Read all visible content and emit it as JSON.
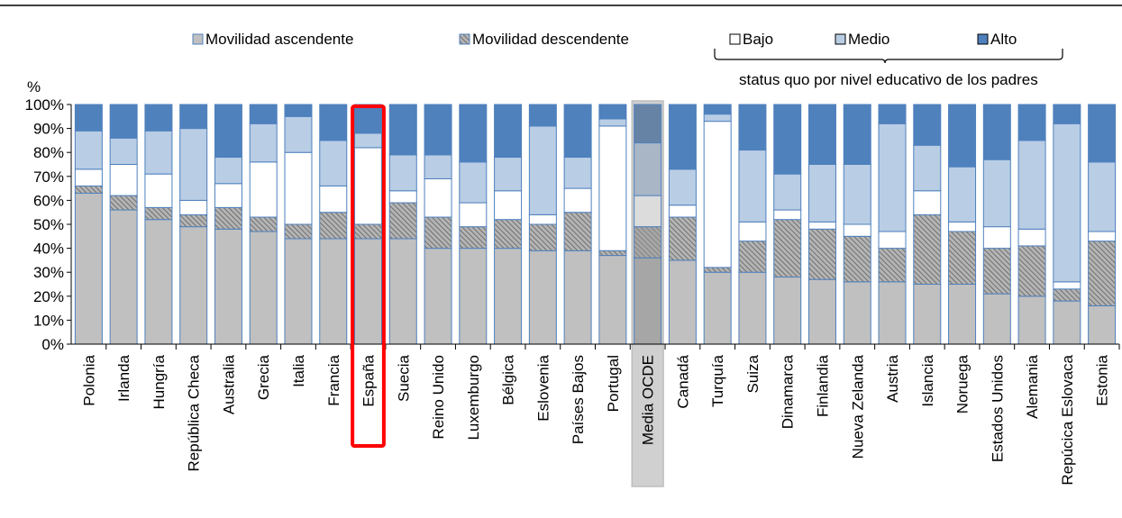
{
  "chart_data": {
    "type": "bar",
    "stacked": true,
    "ylim": [
      0,
      100
    ],
    "y_unit_label": "%",
    "yticks": [
      "0%",
      "10%",
      "20%",
      "30%",
      "40%",
      "50%",
      "60%",
      "70%",
      "80%",
      "90%",
      "100%"
    ],
    "legend": {
      "ascendente": "Movilidad ascendente",
      "descendente": "Movilidad descendente",
      "bajo": "Bajo",
      "medio": "Medio",
      "alto": "Alto",
      "bracket_caption": "status quo por nivel educativo de los padres",
      "placement": "top"
    },
    "categories": [
      "Polonia",
      "Irlanda",
      "Hungría",
      "República Checa",
      "Australia",
      "Grecia",
      "Italia",
      "Francia",
      "España",
      "Suecia",
      "Reino Unido",
      "Luxemburgo",
      "Bélgica",
      "Eslovenia",
      "Países Bajos",
      "Portugal",
      "Media OCDE",
      "Canadá",
      "Turquía",
      "Suiza",
      "Dinamarca",
      "Finlandia",
      "Nueva Zelanda",
      "Austria",
      "Islancia",
      "Noruega",
      "Estados Unidos",
      "Alemania",
      "Repúcica Eslovaca",
      "Estonia"
    ],
    "series": [
      {
        "name": "Movilidad ascendente",
        "values": [
          63,
          56,
          52,
          49,
          48,
          47,
          44,
          44,
          44,
          44,
          40,
          40,
          40,
          39,
          39,
          37,
          36,
          35,
          30,
          30,
          28,
          27,
          26,
          26,
          25,
          25,
          21,
          20,
          18,
          16
        ]
      },
      {
        "name": "Movilidad descendente",
        "values": [
          3,
          6,
          5,
          5,
          9,
          6,
          6,
          11,
          6,
          15,
          13,
          9,
          12,
          11,
          16,
          2,
          13,
          18,
          2,
          13,
          24,
          21,
          19,
          14,
          29,
          22,
          19,
          21,
          5,
          27
        ]
      },
      {
        "name": "Bajo",
        "values": [
          7,
          13,
          14,
          6,
          10,
          23,
          30,
          11,
          32,
          5,
          16,
          10,
          12,
          4,
          10,
          52,
          13,
          5,
          61,
          8,
          4,
          3,
          5,
          7,
          10,
          4,
          9,
          7,
          3,
          4
        ]
      },
      {
        "name": "Medio",
        "values": [
          16,
          11,
          18,
          30,
          11,
          16,
          15,
          19,
          6,
          15,
          10,
          17,
          14,
          37,
          13,
          3,
          22,
          15,
          3,
          30,
          15,
          24,
          25,
          45,
          19,
          23,
          28,
          37,
          66,
          29
        ]
      },
      {
        "name": "Alto",
        "values": [
          11,
          14,
          11,
          10,
          22,
          8,
          5,
          15,
          12,
          21,
          21,
          24,
          22,
          9,
          22,
          6,
          16,
          27,
          4,
          19,
          29,
          25,
          25,
          8,
          17,
          26,
          23,
          15,
          8,
          24
        ]
      }
    ],
    "highlighted_categories": [
      "España",
      "Media OCDE"
    ],
    "grid": false,
    "colors": {
      "ascendente": "#c0c0c0",
      "descendente_bg": "#b4b4b4",
      "descendente_hatch": "#5f5f5f",
      "bajo": "#ffffff",
      "medio": "#b9cde5",
      "alto": "#4f81bd",
      "bar_edge": "#4f81bd",
      "highlight_box": "#ff0000",
      "ocde_box": "#d0d0d0"
    }
  }
}
